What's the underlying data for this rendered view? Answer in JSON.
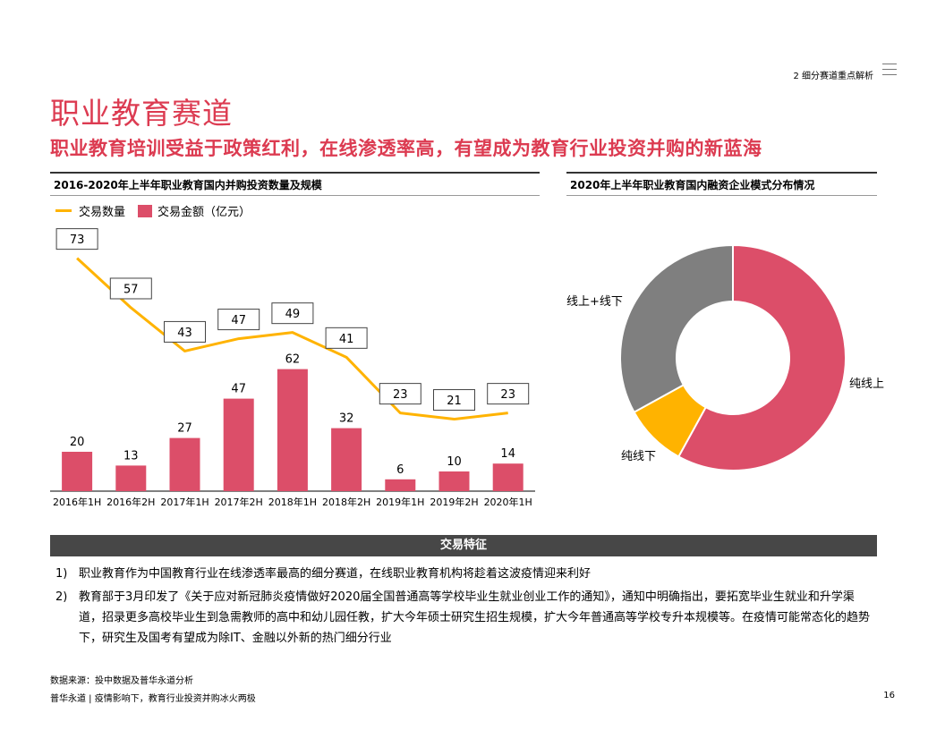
{
  "header": {
    "section": "2 细分赛道重点解析"
  },
  "title": "职业教育赛道",
  "subtitle": "职业教育培训受益于政策红利，在线渗透率高，有望成为教育行业投资并购的新蓝海",
  "left_chart": {
    "title": "2016-2020年上半年职业教育国内并购投资数量及规模",
    "legend_line": "交易数量",
    "legend_bar": "交易金额（亿元）"
  },
  "right_chart": {
    "title": "2020年上半年职业教育国内融资企业模式分布情况"
  },
  "chart_data": [
    {
      "type": "bar",
      "title": "2016-2020年上半年职业教育国内并购投资数量及规模",
      "categories": [
        "2016年1H",
        "2016年2H",
        "2017年1H",
        "2017年2H",
        "2018年1H",
        "2018年2H",
        "2019年1H",
        "2019年2H",
        "2020年1H"
      ],
      "series": [
        {
          "name": "交易金额（亿元）",
          "type": "bar",
          "color": "#dc4e69",
          "values": [
            20,
            13,
            27,
            47,
            62,
            32,
            6,
            10,
            14
          ]
        },
        {
          "name": "交易数量",
          "type": "line",
          "color": "#ffb300",
          "values": [
            73,
            57,
            43,
            47,
            49,
            41,
            23,
            21,
            23
          ]
        }
      ]
    },
    {
      "type": "pie",
      "title": "2020年上半年职业教育国内融资企业模式分布情况",
      "donut": true,
      "slices": [
        {
          "label": "纯线上",
          "value": 58,
          "color": "#dc4e69"
        },
        {
          "label": "纯线下",
          "value": 9,
          "color": "#ffb300"
        },
        {
          "label": "线上+线下",
          "value": 33,
          "color": "#7f7f7f"
        }
      ]
    }
  ],
  "features": {
    "heading": "交易特征",
    "items": [
      {
        "num": "1)",
        "text": "职业教育作为中国教育行业在线渗透率最高的细分赛道，在线职业教育机构将趁着这波疫情迎来利好"
      },
      {
        "num": "2)",
        "text": "教育部于3月印发了《关于应对新冠肺炎疫情做好2020届全国普通高等学校毕业生就业创业工作的通知》，通知中明确指出，要拓宽毕业生就业和升学渠道，招录更多高校毕业生到急需教师的高中和幼儿园任教，扩大今年硕士研究生招生规模，扩大今年普通高等学校专升本规模等。在疫情可能常态化的趋势下，研究生及国考有望成为除IT、金融以外新的热门细分行业"
      }
    ]
  },
  "source": "数据来源：投中数据及普华永道分析",
  "footer": {
    "left": "普华永道 | 疫情影响下，教育行业投资并购冰火两极",
    "page": "16"
  }
}
